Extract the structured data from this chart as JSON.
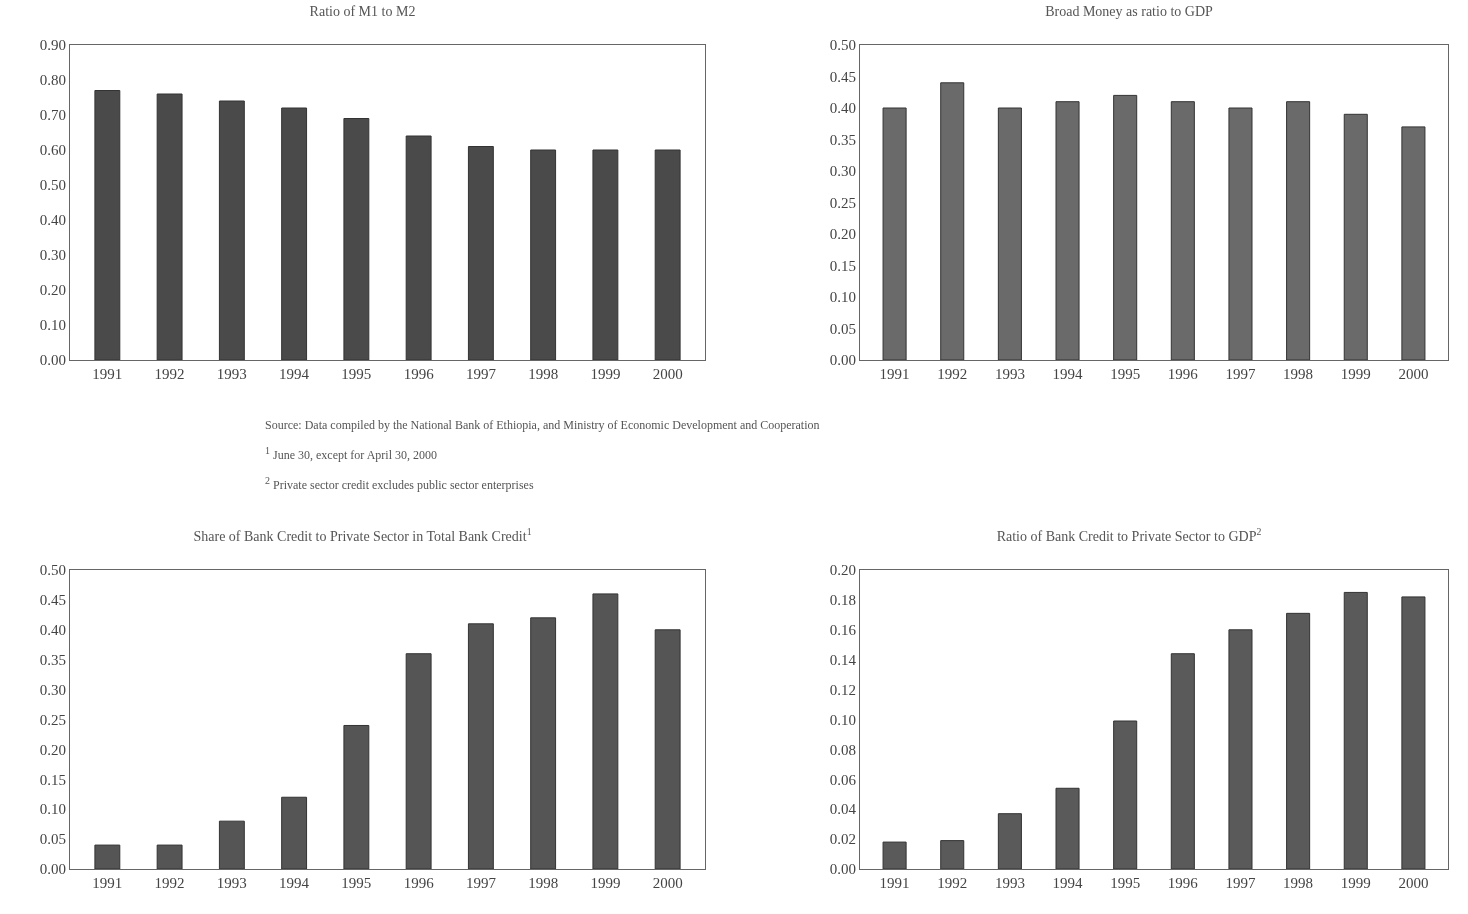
{
  "chart_data": [
    {
      "type": "bar",
      "title": "Ratio of M1 to M2",
      "categories": [
        "1991",
        "1992",
        "1993",
        "1994",
        "1995",
        "1996",
        "1997",
        "1998",
        "1999",
        "2000"
      ],
      "values": [
        0.77,
        0.76,
        0.74,
        0.72,
        0.69,
        0.64,
        0.61,
        0.6,
        0.6,
        0.6
      ],
      "color": "#4a4a4a",
      "ylim": [
        0,
        0.9
      ],
      "yticks": [
        {
          "value": 0,
          "label": "0.00"
        },
        {
          "value": 0.1,
          "label": "0.10"
        },
        {
          "value": 0.2,
          "label": "0.20"
        },
        {
          "value": 0.3,
          "label": "0.30"
        },
        {
          "value": 0.4,
          "label": "0.40"
        },
        {
          "value": 0.5,
          "label": "0.50"
        },
        {
          "value": 0.6,
          "label": "0.60"
        },
        {
          "value": 0.7,
          "label": "0.70"
        },
        {
          "value": 0.8,
          "label": "0.80"
        },
        {
          "value": 0.9,
          "label": "0.90"
        }
      ]
    },
    {
      "type": "bar",
      "title": "Broad Money as ratio to GDP",
      "categories": [
        "1991",
        "1992",
        "1993",
        "1994",
        "1995",
        "1996",
        "1997",
        "1998",
        "1999",
        "2000"
      ],
      "values": [
        0.4,
        0.44,
        0.4,
        0.41,
        0.42,
        0.41,
        0.4,
        0.41,
        0.39,
        0.37
      ],
      "color": "#6a6a6a",
      "ylim": [
        0,
        0.5
      ],
      "yticks": [
        {
          "value": 0,
          "label": "0.00"
        },
        {
          "value": 0.05,
          "label": "0.05"
        },
        {
          "value": 0.1,
          "label": "0.10"
        },
        {
          "value": 0.15,
          "label": "0.15"
        },
        {
          "value": 0.2,
          "label": "0.20"
        },
        {
          "value": 0.25,
          "label": "0.25"
        },
        {
          "value": 0.3,
          "label": "0.30"
        },
        {
          "value": 0.35,
          "label": "0.35"
        },
        {
          "value": 0.4,
          "label": "0.40"
        },
        {
          "value": 0.45,
          "label": "0.45"
        },
        {
          "value": 0.5,
          "label": "0.50"
        }
      ],
      "annotations": [
        "Source: Data compiled by the National Bank of Ethiopia, and Ministry of Economic Development and Cooperation",
        "$^{1}$ June 30, except for April 30, 2000",
        "$^{2}$ Private sector credit excludes public sector enterprises"
      ]
    },
    {
      "type": "bar",
      "title": "Share of Bank Credit to Private Sector in Total Bank Credit$^{1}$",
      "categories": [
        "1991",
        "1992",
        "1993",
        "1994",
        "1995",
        "1996",
        "1997",
        "1998",
        "1999",
        "2000"
      ],
      "values": [
        0.04,
        0.04,
        0.08,
        0.12,
        0.24,
        0.36,
        0.41,
        0.42,
        0.46,
        0.4
      ],
      "color": "#555555",
      "ylim": [
        0,
        0.5
      ],
      "yticks": [
        {
          "value": 0,
          "label": "0.00"
        },
        {
          "value": 0.05,
          "label": "0.05"
        },
        {
          "value": 0.1,
          "label": "0.10"
        },
        {
          "value": 0.15,
          "label": "0.15"
        },
        {
          "value": 0.2,
          "label": "0.20"
        },
        {
          "value": 0.25,
          "label": "0.25"
        },
        {
          "value": 0.3,
          "label": "0.30"
        },
        {
          "value": 0.35,
          "label": "0.35"
        },
        {
          "value": 0.4,
          "label": "0.40"
        },
        {
          "value": 0.45,
          "label": "0.45"
        },
        {
          "value": 0.5,
          "label": "0.50"
        }
      ]
    },
    {
      "type": "bar",
      "title": "Ratio of Bank Credit to Private Sector to GDP$^{2}$",
      "categories": [
        "1991",
        "1992",
        "1993",
        "1994",
        "1995",
        "1996",
        "1997",
        "1998",
        "1999",
        "2000"
      ],
      "values": [
        0.018,
        0.019,
        0.037,
        0.054,
        0.099,
        0.144,
        0.16,
        0.171,
        0.185,
        0.182
      ],
      "color": "#5a5a5a",
      "ylim": [
        0,
        0.2
      ],
      "yticks": [
        {
          "value": 0,
          "label": "0.00"
        },
        {
          "value": 0.02,
          "label": "0.02"
        },
        {
          "value": 0.04,
          "label": "0.04"
        },
        {
          "value": 0.06,
          "label": "0.06"
        },
        {
          "value": 0.08,
          "label": "0.08"
        },
        {
          "value": 0.1,
          "label": "0.10"
        },
        {
          "value": 0.12,
          "label": "0.12"
        },
        {
          "value": 0.14,
          "label": "0.14"
        },
        {
          "value": 0.16,
          "label": "0.16"
        },
        {
          "value": 0.18,
          "label": "0.18"
        },
        {
          "value": 0.2,
          "label": "0.20"
        }
      ]
    }
  ]
}
